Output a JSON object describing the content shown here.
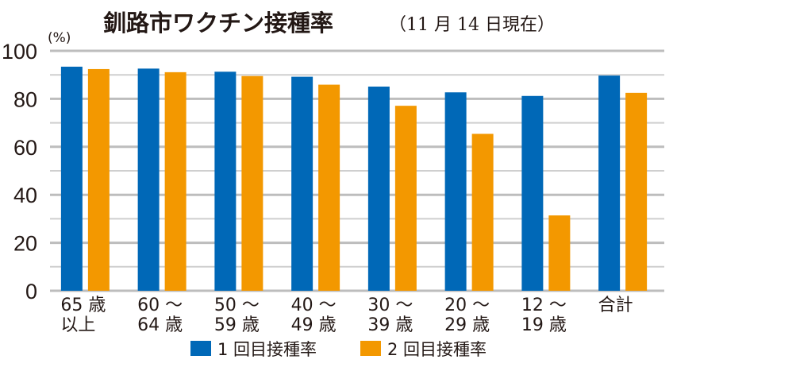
{
  "chart_data": {
    "type": "bar",
    "title": "釧路市ワクチン接種率",
    "subtitle": "（11 月 14 日現在）",
    "ylabel": "(%)",
    "xlabel": "",
    "ylim": [
      0,
      100
    ],
    "yticks": [
      0,
      20,
      40,
      60,
      80,
      100
    ],
    "ytick_labels": [
      "0",
      "20",
      "40",
      "60",
      "80",
      "100"
    ],
    "grid": true,
    "categories": [
      [
        "65 歳",
        "以上"
      ],
      [
        "60 ～",
        "64 歳"
      ],
      [
        "50 ～",
        "59 歳"
      ],
      [
        "40 ～",
        "49 歳"
      ],
      [
        "30 ～",
        "39 歳"
      ],
      [
        "20 ～",
        "29 歳"
      ],
      [
        "12 ～",
        "19 歳"
      ],
      [
        "合計"
      ]
    ],
    "series": [
      {
        "name": "1 回目接種率",
        "color": "#0068b7",
        "values": [
          93.4,
          92.6,
          91.3,
          89.2,
          85.1,
          82.7,
          81.2,
          89.7
        ]
      },
      {
        "name": "2 回目接種率",
        "color": "#f39800",
        "values": [
          92.4,
          91.1,
          89.5,
          85.9,
          77.1,
          65.4,
          31.4,
          82.5
        ]
      }
    ],
    "legend_position": "bottom"
  }
}
